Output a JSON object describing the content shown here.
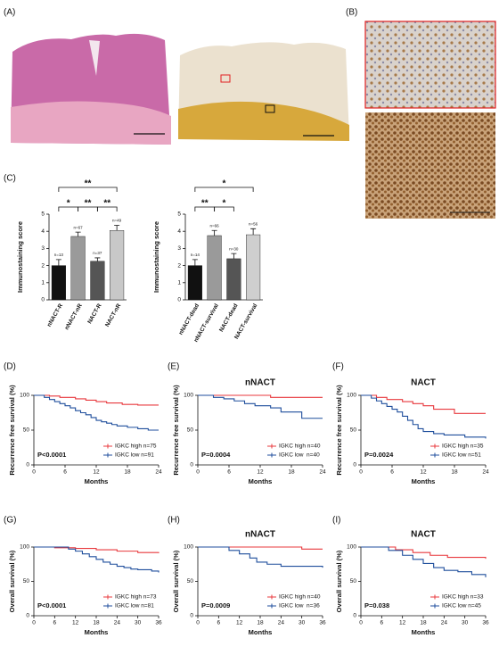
{
  "panel_labels": {
    "a": "(A)",
    "b": "(B)"
  },
  "chart_data": [
    {
      "type": "bar",
      "panel": "(C)",
      "ylabel": "Immunostaining score",
      "categories": [
        "nNACT-R",
        "nNACT-nR",
        "NACT-R",
        "NACT-nR"
      ],
      "values": [
        2.0,
        3.7,
        2.25,
        4.05
      ],
      "errors": [
        0.35,
        0.25,
        0.2,
        0.3
      ],
      "n_labels": [
        "n=13",
        "n=67",
        "n=37",
        "n=49"
      ],
      "colors": [
        "#111111",
        "#9a9a9a",
        "#555555",
        "#c8c8c8"
      ],
      "ylim": [
        0,
        5
      ],
      "yticks": [
        0,
        1,
        2,
        3,
        4,
        5
      ],
      "annotations": [
        "**",
        "*",
        "**",
        "**"
      ]
    },
    {
      "type": "bar",
      "ylabel": "Immunostaining score",
      "categories": [
        "nNACT-dead",
        "nNACT-survival",
        "NACT-dead",
        "NACT-survival"
      ],
      "values": [
        2.0,
        3.75,
        2.4,
        3.8
      ],
      "errors": [
        0.35,
        0.3,
        0.3,
        0.35
      ],
      "n_labels": [
        "n=14",
        "n=66",
        "n=30",
        "n=56"
      ],
      "colors": [
        "#111111",
        "#9a9a9a",
        "#555555",
        "#cfcfcf"
      ],
      "ylim": [
        0,
        5
      ],
      "yticks": [
        0,
        1,
        2,
        3,
        4,
        5
      ],
      "annotations": [
        "*",
        "**",
        "*"
      ]
    },
    {
      "type": "step",
      "panel": "(D)",
      "xlabel": "Months",
      "ylabel": "Recurrence free survival (%)",
      "annotation": "P<0.0001",
      "xlim": [
        0,
        24
      ],
      "xticks": [
        0,
        6,
        12,
        18,
        24
      ],
      "ylim": [
        0,
        100
      ],
      "yticks": [
        0,
        50,
        100
      ],
      "series": [
        {
          "name": "IGKC high n=75",
          "color": "#e8383d",
          "x": [
            0,
            3,
            5,
            8,
            10,
            12,
            14,
            17,
            20,
            24
          ],
          "values": [
            100,
            99,
            97,
            95,
            93,
            91,
            89,
            87,
            86,
            86
          ]
        },
        {
          "name": "IGKC low n=91",
          "color": "#1f4e9c",
          "x": [
            0,
            2,
            3,
            4,
            5,
            6,
            7,
            8,
            9,
            10,
            11,
            12,
            13,
            14,
            15,
            16,
            18,
            20,
            22,
            24
          ],
          "values": [
            100,
            97,
            94,
            91,
            88,
            85,
            82,
            78,
            75,
            72,
            68,
            64,
            62,
            60,
            58,
            56,
            54,
            52,
            50,
            50
          ]
        }
      ]
    },
    {
      "type": "step",
      "panel": "(E)",
      "title": "nNACT",
      "xlabel": "Months",
      "ylabel": "Recurrence free survival (%)",
      "annotation": "P=0.0004",
      "xlim": [
        0,
        24
      ],
      "xticks": [
        0,
        6,
        12,
        18,
        24
      ],
      "ylim": [
        0,
        100
      ],
      "yticks": [
        0,
        50,
        100
      ],
      "series": [
        {
          "name": "IGKC high n=40",
          "color": "#e8383d",
          "x": [
            0,
            14,
            24
          ],
          "values": [
            100,
            97,
            97
          ]
        },
        {
          "name": "IGKC low  n=40",
          "color": "#1f4e9c",
          "x": [
            0,
            3,
            5,
            7,
            9,
            11,
            14,
            16,
            20,
            24
          ],
          "values": [
            100,
            97,
            95,
            92,
            88,
            85,
            82,
            76,
            67,
            67
          ]
        }
      ]
    },
    {
      "type": "step",
      "panel": "(F)",
      "title": "NACT",
      "xlabel": "Months",
      "ylabel": "Recurrence free survival (%)",
      "annotation": "P=0.0024",
      "xlim": [
        0,
        24
      ],
      "xticks": [
        0,
        6,
        12,
        18,
        24
      ],
      "ylim": [
        0,
        100
      ],
      "yticks": [
        0,
        50,
        100
      ],
      "series": [
        {
          "name": "IGKC high n=35",
          "color": "#e8383d",
          "x": [
            0,
            3,
            5,
            8,
            10,
            12,
            14,
            18,
            24
          ],
          "values": [
            100,
            97,
            94,
            91,
            88,
            85,
            80,
            74,
            74
          ]
        },
        {
          "name": "IGKC low n=51",
          "color": "#1f4e9c",
          "x": [
            0,
            2,
            3,
            4,
            5,
            6,
            7,
            8,
            9,
            10,
            11,
            12,
            14,
            16,
            18,
            20,
            24
          ],
          "values": [
            100,
            96,
            92,
            88,
            84,
            80,
            76,
            70,
            64,
            58,
            52,
            48,
            45,
            43,
            43,
            40,
            38
          ]
        }
      ]
    },
    {
      "type": "step",
      "panel": "(G)",
      "xlabel": "Months",
      "ylabel": "Overall survival (%)",
      "annotation": "P<0.0001",
      "xlim": [
        0,
        36
      ],
      "xticks": [
        0,
        6,
        12,
        18,
        24,
        30,
        36
      ],
      "ylim": [
        0,
        100
      ],
      "yticks": [
        0,
        50,
        100
      ],
      "series": [
        {
          "name": "IGKC high n=73",
          "color": "#e8383d",
          "x": [
            0,
            6,
            12,
            18,
            24,
            30,
            36
          ],
          "values": [
            100,
            99,
            98,
            96,
            94,
            92,
            91
          ]
        },
        {
          "name": "IGKC low n=81",
          "color": "#1f4e9c",
          "x": [
            0,
            10,
            12,
            14,
            16,
            18,
            20,
            22,
            24,
            26,
            28,
            30,
            34,
            36
          ],
          "values": [
            100,
            97,
            94,
            90,
            86,
            82,
            78,
            75,
            72,
            70,
            68,
            67,
            65,
            63
          ]
        }
      ]
    },
    {
      "type": "step",
      "panel": "(H)",
      "title": "nNACT",
      "xlabel": "Months",
      "ylabel": "Overall survival (%)",
      "annotation": "P=0.0009",
      "xlim": [
        0,
        36
      ],
      "xticks": [
        0,
        6,
        12,
        18,
        24,
        30,
        36
      ],
      "ylim": [
        0,
        100
      ],
      "yticks": [
        0,
        50,
        100
      ],
      "series": [
        {
          "name": "IGKC high n=40",
          "color": "#e8383d",
          "x": [
            0,
            30,
            36
          ],
          "values": [
            100,
            97,
            97
          ]
        },
        {
          "name": "IGKC low  n=36",
          "color": "#1f4e9c",
          "x": [
            0,
            9,
            12,
            15,
            17,
            20,
            24,
            36
          ],
          "values": [
            100,
            95,
            90,
            84,
            78,
            75,
            72,
            70
          ]
        }
      ]
    },
    {
      "type": "step",
      "panel": "(I)",
      "title": "NACT",
      "xlabel": "Months",
      "ylabel": "Overall survival (%)",
      "annotation": "P=0.038",
      "xlim": [
        0,
        36
      ],
      "xticks": [
        0,
        6,
        12,
        18,
        24,
        30,
        36
      ],
      "ylim": [
        0,
        100
      ],
      "yticks": [
        0,
        50,
        100
      ],
      "series": [
        {
          "name": "IGKC high n=33",
          "color": "#e8383d",
          "x": [
            0,
            10,
            15,
            20,
            25,
            36
          ],
          "values": [
            100,
            96,
            92,
            88,
            85,
            83
          ]
        },
        {
          "name": "IGKC low n=45",
          "color": "#1f4e9c",
          "x": [
            0,
            8,
            12,
            15,
            18,
            21,
            24,
            28,
            32,
            36
          ],
          "values": [
            100,
            95,
            88,
            82,
            76,
            70,
            66,
            64,
            60,
            56
          ]
        }
      ]
    }
  ]
}
